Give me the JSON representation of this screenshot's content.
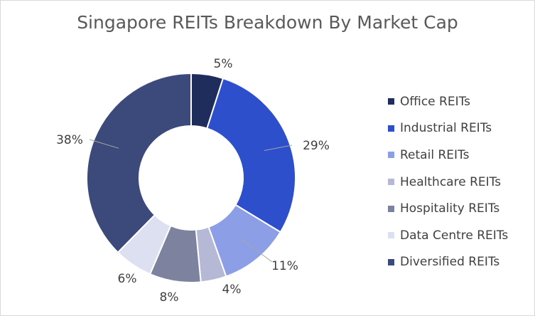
{
  "chart_data": {
    "type": "pie",
    "title": "Singapore REITs Breakdown By Market Cap",
    "categories": [
      "Office REITs",
      "Industrial REITs",
      "Retail REITs",
      "Healthcare REITs",
      "Hospitality REITs",
      "Data Centre REITs",
      "Diversified REITs"
    ],
    "values": [
      5,
      29,
      11,
      4,
      8,
      6,
      38
    ],
    "data_labels": [
      "5%",
      "29%",
      "11%",
      "4%",
      "8%",
      "6%",
      "38%"
    ],
    "colors": [
      "#1f2d5c",
      "#2e4fcc",
      "#8c9ee6",
      "#b5b9d6",
      "#7d829e",
      "#dde0f0",
      "#3b4a7a"
    ],
    "legend_position": "right",
    "donut": true
  }
}
